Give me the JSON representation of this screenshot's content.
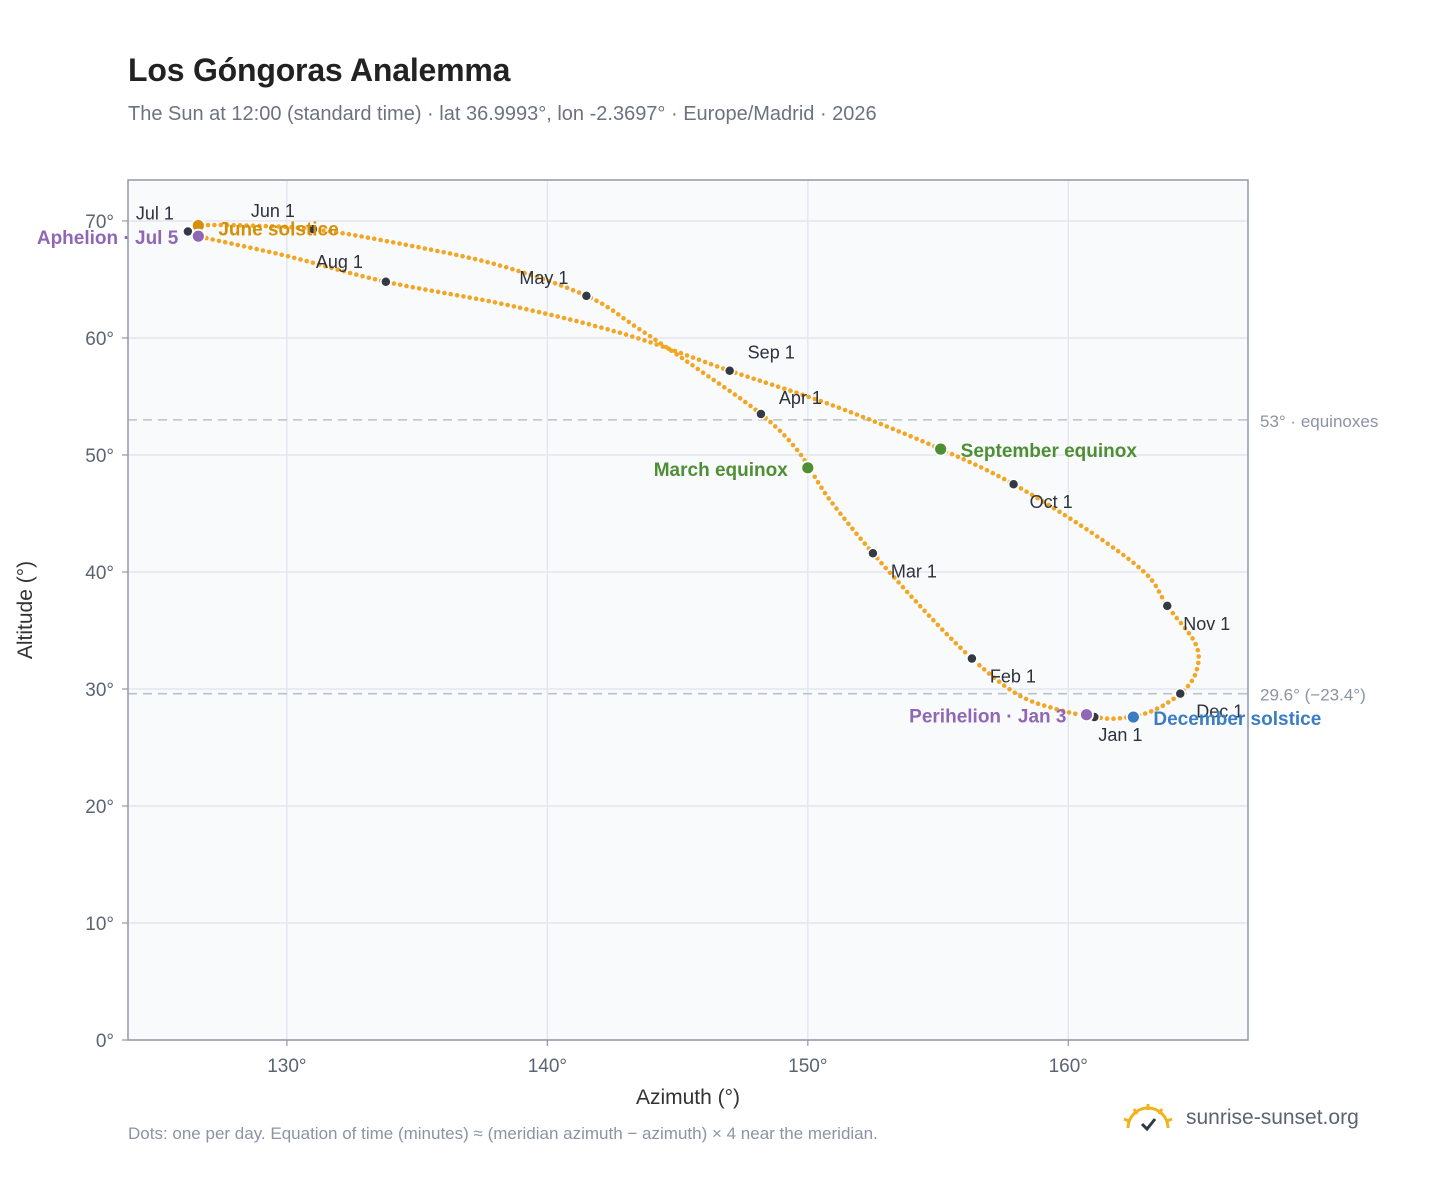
{
  "title": "Los Góngoras Analemma",
  "subtitle": "The Sun at 12:00 (standard time) · lat 36.9993°, lon -2.3697° · Europe/Madrid · 2026",
  "footnote": "Dots: one per day. Equation of time (minutes) ≈ (meridian azimuth − azimuth) × 4 near the meridian.",
  "brand": {
    "text": "sunrise-sunset.org",
    "icon": "sun-check-icon"
  },
  "colors": {
    "path": "#f2a623",
    "month_marker": "#343a45",
    "june_solstice": "#d4900a",
    "december_solstice": "#3b7dc4",
    "equinox": "#4e8f35",
    "apsis": "#8f67b5",
    "plot_bg": "#f8fafc",
    "grid": "#e3e8ee",
    "reference_line": "#b8c4ca"
  },
  "chart_data": {
    "type": "scatter",
    "xlabel": "Azimuth (°)",
    "ylabel": "Altitude (°)",
    "xlim": [
      123.9,
      166.9
    ],
    "ylim": [
      0,
      73.5
    ],
    "x_ticks": [
      130,
      140,
      150,
      160
    ],
    "x_tick_labels": [
      "130°",
      "140°",
      "150°",
      "160°"
    ],
    "y_ticks": [
      0,
      10,
      20,
      30,
      40,
      50,
      60,
      70
    ],
    "y_tick_labels": [
      "0°",
      "10°",
      "20°",
      "30°",
      "40°",
      "50°",
      "60°",
      "70°"
    ],
    "grid": true,
    "reference_lines": [
      {
        "y": 53.0,
        "label": "53° · equinoxes"
      },
      {
        "y": 29.6,
        "label": "29.6° (−23.4°)"
      }
    ],
    "month_markers": [
      {
        "label": "Jan 1",
        "azimuth": 161.0,
        "altitude": 27.6
      },
      {
        "label": "Feb 1",
        "azimuth": 156.3,
        "altitude": 32.6
      },
      {
        "label": "Mar 1",
        "azimuth": 152.5,
        "altitude": 41.6
      },
      {
        "label": "Apr 1",
        "azimuth": 148.2,
        "altitude": 53.5
      },
      {
        "label": "May 1",
        "azimuth": 141.5,
        "altitude": 63.6
      },
      {
        "label": "Jun 1",
        "azimuth": 131.0,
        "altitude": 69.3
      },
      {
        "label": "Jul 1",
        "azimuth": 126.2,
        "altitude": 69.1
      },
      {
        "label": "Aug 1",
        "azimuth": 133.8,
        "altitude": 64.8
      },
      {
        "label": "Sep 1",
        "azimuth": 147.0,
        "altitude": 57.2
      },
      {
        "label": "Oct 1",
        "azimuth": 157.9,
        "altitude": 47.5
      },
      {
        "label": "Nov 1",
        "azimuth": 163.8,
        "altitude": 37.1
      },
      {
        "label": "Dec 1",
        "azimuth": 164.3,
        "altitude": 29.6
      }
    ],
    "events": [
      {
        "label": "June solstice",
        "kind": "june_solstice",
        "azimuth": 126.6,
        "altitude": 69.6
      },
      {
        "label": "Aphelion · Jul 5",
        "kind": "apsis",
        "azimuth": 126.6,
        "altitude": 68.7
      },
      {
        "label": "March equinox",
        "kind": "equinox",
        "azimuth": 150.0,
        "altitude": 48.9
      },
      {
        "label": "September equinox",
        "kind": "equinox",
        "azimuth": 155.1,
        "altitude": 50.5
      },
      {
        "label": "Perihelion · Jan 3",
        "kind": "apsis",
        "azimuth": 160.7,
        "altitude": 27.8
      },
      {
        "label": "December solstice",
        "kind": "december_solstice",
        "azimuth": 162.5,
        "altitude": 27.6
      }
    ],
    "daily_path_loop": [
      [
        161.0,
        27.6
      ],
      [
        159.5,
        28.3
      ],
      [
        158.0,
        29.6
      ],
      [
        156.3,
        32.6
      ],
      [
        154.6,
        36.4
      ],
      [
        152.5,
        41.6
      ],
      [
        150.8,
        46.3
      ],
      [
        149.6,
        50.4
      ],
      [
        148.2,
        53.5
      ],
      [
        146.0,
        57.0
      ],
      [
        143.5,
        60.8
      ],
      [
        141.5,
        63.6
      ],
      [
        138.0,
        66.3
      ],
      [
        134.0,
        68.2
      ],
      [
        131.0,
        69.3
      ],
      [
        128.6,
        69.6
      ],
      [
        126.6,
        69.6
      ],
      [
        126.2,
        69.1
      ],
      [
        126.6,
        68.7
      ],
      [
        130.0,
        67.0
      ],
      [
        133.8,
        64.8
      ],
      [
        138.5,
        62.8
      ],
      [
        143.0,
        60.3
      ],
      [
        147.0,
        57.2
      ],
      [
        151.0,
        54.2
      ],
      [
        155.1,
        50.5
      ],
      [
        157.9,
        47.5
      ],
      [
        161.0,
        43.2
      ],
      [
        163.0,
        39.8
      ],
      [
        163.8,
        37.1
      ],
      [
        164.9,
        33.8
      ],
      [
        164.9,
        31.4
      ],
      [
        164.3,
        29.6
      ],
      [
        163.2,
        28.1
      ],
      [
        162.0,
        27.5
      ]
    ]
  }
}
